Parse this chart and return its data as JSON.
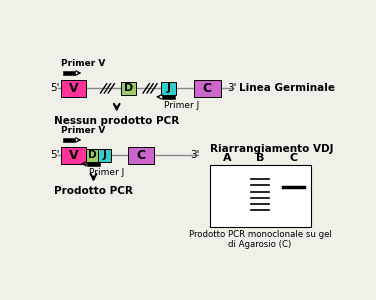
{
  "bg_color": "#f0f0e8",
  "colors": {
    "V": "#ff3399",
    "D": "#99cc66",
    "J": "#33cccc",
    "C": "#cc66cc"
  },
  "label_Linea": "Linea Germinale",
  "label_Riarrangiamento": "Riarrangiamento VDJ",
  "label_Nessun": "Nessun prodotto PCR",
  "label_Prodotto": "Prodotto PCR",
  "label_gel_caption": "Prodotto PCR monoclonale su gel\ndi Agarosio (C)",
  "gel_labels": [
    "A",
    "B",
    "C"
  ],
  "primer_v_label": "Primer V",
  "primer_j_label": "Primer J",
  "five_prime": "5'",
  "three_prime": "3'"
}
